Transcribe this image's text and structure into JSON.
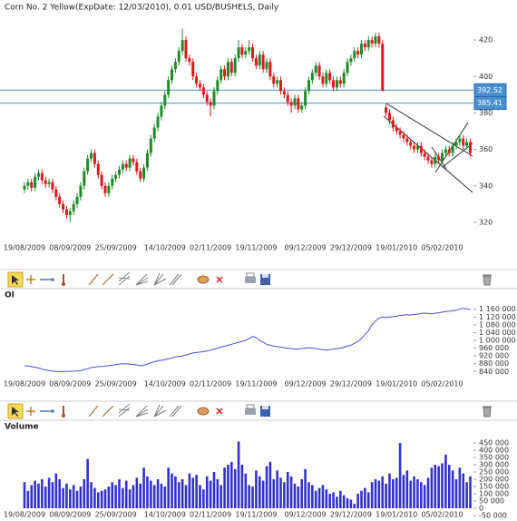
{
  "chart_data": [
    {
      "type": "candlestick",
      "title": "Corn  No. 2 Yellow(ExpDate: 12/03/2010), 0.01 USD/BUSHELS, Daily",
      "categories": [
        "19/08/2009",
        null,
        null,
        null,
        null,
        null,
        null,
        null,
        null,
        null,
        null,
        null,
        null,
        "08/09/2009",
        null,
        null,
        null,
        null,
        null,
        null,
        null,
        null,
        null,
        null,
        null,
        null,
        "25/09/2009",
        null,
        null,
        null,
        null,
        null,
        null,
        null,
        null,
        null,
        null,
        null,
        null,
        null,
        "14/10/2009",
        null,
        null,
        null,
        null,
        null,
        null,
        null,
        null,
        null,
        null,
        null,
        null,
        "02/11/2009",
        null,
        null,
        null,
        null,
        null,
        null,
        null,
        null,
        null,
        null,
        null,
        null,
        "19/11/2009",
        null,
        null,
        null,
        null,
        null,
        null,
        null,
        null,
        null,
        null,
        null,
        null,
        null,
        "09/12/2009",
        null,
        null,
        null,
        null,
        null,
        null,
        null,
        null,
        null,
        null,
        null,
        null,
        "29/12/2009",
        null,
        null,
        null,
        null,
        null,
        null,
        null,
        null,
        null,
        null,
        null,
        null,
        "19/01/2010",
        null,
        null,
        null,
        null,
        null,
        null,
        null,
        null,
        null,
        null,
        null,
        null,
        "05/02/2010",
        null,
        null,
        null,
        null,
        null,
        null,
        null,
        null
      ],
      "open": [
        338,
        340,
        342,
        339,
        345,
        347,
        343,
        341,
        342,
        338,
        334,
        330,
        327,
        324,
        326,
        330,
        334,
        340,
        348,
        355,
        358,
        352,
        346,
        340,
        336,
        340,
        344,
        346,
        349,
        352,
        350,
        355,
        353,
        348,
        344,
        350,
        358,
        366,
        372,
        378,
        384,
        390,
        398,
        404,
        408,
        414,
        420,
        410,
        408,
        400,
        396,
        394,
        390,
        386,
        384,
        392,
        398,
        404,
        400,
        408,
        402,
        410,
        416,
        412,
        414,
        416,
        410,
        406,
        412,
        404,
        408,
        400,
        396,
        398,
        392,
        390,
        386,
        384,
        388,
        382,
        384,
        392,
        398,
        402,
        406,
        400,
        396,
        402,
        398,
        394,
        398,
        396,
        402,
        408,
        410,
        414,
        412,
        418,
        416,
        420,
        418,
        422,
        418,
        383,
        380,
        376,
        372,
        370,
        368,
        366,
        364,
        362,
        360,
        362,
        358,
        356,
        354,
        352,
        356,
        354,
        358,
        360,
        358,
        362,
        364,
        366,
        362,
        364
      ],
      "high": [
        342,
        344,
        344,
        347,
        349,
        349,
        345,
        344,
        344,
        340,
        336,
        332,
        329,
        328,
        332,
        336,
        342,
        350,
        357,
        360,
        360,
        354,
        348,
        342,
        342,
        346,
        348,
        351,
        354,
        354,
        357,
        357,
        355,
        350,
        352,
        360,
        368,
        374,
        380,
        386,
        392,
        400,
        406,
        410,
        416,
        426,
        422,
        412,
        410,
        402,
        398,
        396,
        392,
        388,
        394,
        400,
        406,
        406,
        410,
        410,
        412,
        420,
        418,
        416,
        420,
        418,
        412,
        414,
        414,
        410,
        410,
        402,
        400,
        400,
        394,
        392,
        388,
        390,
        390,
        386,
        394,
        400,
        404,
        408,
        408,
        402,
        404,
        404,
        400,
        400,
        400,
        404,
        410,
        412,
        416,
        416,
        420,
        420,
        422,
        422,
        424,
        424,
        420,
        385,
        382,
        378,
        374,
        372,
        370,
        368,
        366,
        364,
        364,
        364,
        360,
        358,
        356,
        358,
        358,
        360,
        362,
        362,
        364,
        366,
        368,
        368,
        366,
        366
      ],
      "low": [
        336,
        338,
        337,
        337,
        343,
        341,
        339,
        339,
        336,
        332,
        328,
        325,
        322,
        320,
        324,
        328,
        332,
        338,
        346,
        353,
        350,
        344,
        338,
        334,
        334,
        338,
        342,
        344,
        347,
        348,
        348,
        351,
        346,
        342,
        342,
        348,
        356,
        364,
        370,
        376,
        382,
        388,
        396,
        402,
        406,
        412,
        408,
        406,
        398,
        394,
        392,
        388,
        384,
        378,
        382,
        390,
        396,
        398,
        398,
        400,
        400,
        408,
        410,
        410,
        412,
        408,
        404,
        404,
        402,
        402,
        398,
        394,
        394,
        390,
        388,
        384,
        380,
        382,
        380,
        380,
        382,
        390,
        396,
        400,
        398,
        394,
        394,
        396,
        392,
        392,
        394,
        394,
        400,
        406,
        408,
        410,
        410,
        414,
        414,
        416,
        416,
        416,
        392,
        378,
        374,
        370,
        368,
        366,
        364,
        362,
        360,
        358,
        358,
        356,
        354,
        352,
        350,
        350,
        352,
        352,
        356,
        356,
        356,
        360,
        362,
        360,
        360,
        356
      ],
      "close": [
        340,
        342,
        339,
        345,
        347,
        343,
        341,
        342,
        338,
        334,
        330,
        327,
        324,
        326,
        330,
        334,
        340,
        348,
        355,
        358,
        352,
        346,
        340,
        336,
        340,
        344,
        346,
        349,
        352,
        350,
        355,
        353,
        348,
        344,
        350,
        358,
        366,
        372,
        378,
        384,
        390,
        398,
        404,
        408,
        414,
        420,
        410,
        408,
        400,
        396,
        394,
        390,
        386,
        384,
        392,
        398,
        404,
        400,
        408,
        402,
        410,
        416,
        412,
        414,
        416,
        410,
        406,
        412,
        404,
        408,
        400,
        396,
        398,
        392,
        390,
        386,
        384,
        388,
        382,
        384,
        392,
        398,
        402,
        406,
        400,
        396,
        402,
        398,
        394,
        398,
        396,
        402,
        408,
        410,
        414,
        412,
        418,
        416,
        420,
        418,
        422,
        418,
        392,
        380,
        376,
        372,
        370,
        368,
        366,
        364,
        362,
        360,
        362,
        358,
        356,
        354,
        352,
        356,
        354,
        358,
        360,
        358,
        362,
        364,
        366,
        362,
        364,
        358
      ],
      "up_color": "#1f8a2a",
      "down_color": "#d81c1c",
      "ylim": [
        310,
        433
      ],
      "yticks": [
        320,
        340,
        360,
        380,
        400,
        420
      ],
      "hlines": [
        392.52,
        385.41
      ],
      "hline_color": "#4a90d0"
    },
    {
      "type": "line",
      "title": "OI",
      "categories": [
        "19/08/2009",
        null,
        null,
        null,
        null,
        null,
        null,
        null,
        null,
        null,
        null,
        null,
        null,
        "08/09/2009",
        null,
        null,
        null,
        null,
        null,
        null,
        null,
        null,
        null,
        null,
        null,
        null,
        "25/09/2009",
        null,
        null,
        null,
        null,
        null,
        null,
        null,
        null,
        null,
        null,
        null,
        null,
        null,
        "14/10/2009",
        null,
        null,
        null,
        null,
        null,
        null,
        null,
        null,
        null,
        null,
        null,
        null,
        "02/11/2009",
        null,
        null,
        null,
        null,
        null,
        null,
        null,
        null,
        null,
        null,
        null,
        null,
        "19/11/2009",
        null,
        null,
        null,
        null,
        null,
        null,
        null,
        null,
        null,
        null,
        null,
        null,
        null,
        "09/12/2009",
        null,
        null,
        null,
        null,
        null,
        null,
        null,
        null,
        null,
        null,
        null,
        null,
        "29/12/2009",
        null,
        null,
        null,
        null,
        null,
        null,
        null,
        null,
        null,
        null,
        null,
        null,
        "19/01/2010",
        null,
        null,
        null,
        null,
        null,
        null,
        null,
        null,
        null,
        null,
        null,
        null,
        "05/02/2010",
        null,
        null,
        null,
        null,
        null,
        null,
        null,
        null
      ],
      "values": [
        870000,
        868000,
        865000,
        862000,
        858000,
        852000,
        848000,
        845000,
        842000,
        840000,
        840000,
        839000,
        840000,
        841000,
        842000,
        843000,
        845000,
        850000,
        855000,
        860000,
        862000,
        865000,
        866000,
        868000,
        870000,
        872000,
        875000,
        878000,
        880000,
        879000,
        878000,
        876000,
        874000,
        870000,
        872000,
        878000,
        885000,
        890000,
        895000,
        898000,
        900000,
        905000,
        910000,
        915000,
        918000,
        920000,
        925000,
        930000,
        935000,
        938000,
        940000,
        942000,
        945000,
        950000,
        955000,
        960000,
        965000,
        970000,
        975000,
        980000,
        985000,
        990000,
        995000,
        1000000,
        1010000,
        1020000,
        1015000,
        1000000,
        990000,
        980000,
        975000,
        970000,
        968000,
        965000,
        962000,
        960000,
        958000,
        955000,
        955000,
        958000,
        960000,
        962000,
        960000,
        958000,
        955000,
        952000,
        950000,
        952000,
        955000,
        958000,
        960000,
        965000,
        970000,
        975000,
        985000,
        995000,
        1010000,
        1030000,
        1050000,
        1080000,
        1100000,
        1115000,
        1120000,
        1118000,
        1120000,
        1122000,
        1125000,
        1128000,
        1130000,
        1132000,
        1130000,
        1133000,
        1135000,
        1138000,
        1140000,
        1138000,
        1136000,
        1140000,
        1142000,
        1145000,
        1148000,
        1150000,
        1152000,
        1155000,
        1160000,
        1165000,
        1162000,
        1158000
      ],
      "color": "#4c4ccf",
      "ylim": [
        790000,
        1210000
      ],
      "yticks": [
        {
          "value": 840000,
          "label": "840 000"
        },
        {
          "value": 880000,
          "label": "880 000"
        },
        {
          "value": 920000,
          "label": "920 000"
        },
        {
          "value": 960000,
          "label": "960 000"
        },
        {
          "value": 1000000,
          "label": "1 000 000"
        },
        {
          "value": 1040000,
          "label": "1 040 000"
        },
        {
          "value": 1080000,
          "label": "1 080 000"
        },
        {
          "value": 1120000,
          "label": "1 120 000"
        },
        {
          "value": 1160000,
          "label": "1 160 000"
        }
      ]
    },
    {
      "type": "bar",
      "title": "Volume",
      "categories": [
        "19/08/2009",
        null,
        null,
        null,
        null,
        null,
        null,
        null,
        null,
        null,
        null,
        null,
        null,
        "08/09/2009",
        null,
        null,
        null,
        null,
        null,
        null,
        null,
        null,
        null,
        null,
        null,
        null,
        "25/09/2009",
        null,
        null,
        null,
        null,
        null,
        null,
        null,
        null,
        null,
        null,
        null,
        null,
        null,
        "14/10/2009",
        null,
        null,
        null,
        null,
        null,
        null,
        null,
        null,
        null,
        null,
        null,
        null,
        "02/11/2009",
        null,
        null,
        null,
        null,
        null,
        null,
        null,
        null,
        null,
        null,
        null,
        null,
        "19/11/2009",
        null,
        null,
        null,
        null,
        null,
        null,
        null,
        null,
        null,
        null,
        null,
        null,
        null,
        "09/12/2009",
        null,
        null,
        null,
        null,
        null,
        null,
        null,
        null,
        null,
        null,
        null,
        null,
        "29/12/2009",
        null,
        null,
        null,
        null,
        null,
        null,
        null,
        null,
        null,
        null,
        null,
        null,
        "19/01/2010",
        null,
        null,
        null,
        null,
        null,
        null,
        null,
        null,
        null,
        null,
        null,
        null,
        "05/02/2010",
        null,
        null,
        null,
        null,
        null,
        null,
        null,
        null
      ],
      "values": [
        180000,
        120000,
        160000,
        190000,
        170000,
        200000,
        150000,
        210000,
        180000,
        240000,
        200000,
        140000,
        170000,
        130000,
        160000,
        120000,
        150000,
        200000,
        340000,
        180000,
        140000,
        110000,
        120000,
        130000,
        150000,
        180000,
        160000,
        200000,
        140000,
        190000,
        130000,
        160000,
        210000,
        170000,
        280000,
        220000,
        190000,
        160000,
        200000,
        170000,
        150000,
        280000,
        240000,
        220000,
        180000,
        200000,
        160000,
        240000,
        210000,
        230000,
        160000,
        130000,
        220000,
        190000,
        250000,
        200000,
        160000,
        280000,
        300000,
        320000,
        270000,
        460000,
        300000,
        240000,
        160000,
        150000,
        260000,
        220000,
        190000,
        290000,
        320000,
        200000,
        260000,
        210000,
        180000,
        250000,
        220000,
        170000,
        150000,
        200000,
        270000,
        180000,
        160000,
        120000,
        140000,
        160000,
        130000,
        100000,
        110000,
        80000,
        120000,
        90000,
        70000,
        60000,
        30000,
        100000,
        120000,
        140000,
        110000,
        180000,
        200000,
        190000,
        220000,
        170000,
        240000,
        200000,
        210000,
        450000,
        230000,
        260000,
        190000,
        220000,
        200000,
        180000,
        160000,
        210000,
        280000,
        300000,
        290000,
        310000,
        370000,
        300000,
        260000,
        200000,
        280000,
        240000,
        180000,
        220000
      ],
      "color": "#3232c8",
      "ylim": [
        -75000,
        512500
      ],
      "yticks": [
        {
          "value": -50000,
          "label": "-50 000"
        },
        0,
        {
          "value": 50000,
          "label": "50 000"
        },
        {
          "value": 100000,
          "label": "100 000"
        },
        {
          "value": 150000,
          "label": "150 000"
        },
        {
          "value": 200000,
          "label": "200 000"
        },
        {
          "value": 250000,
          "label": "250 000"
        },
        {
          "value": 300000,
          "label": "300 000"
        },
        {
          "value": 350000,
          "label": "350 000"
        },
        {
          "value": 400000,
          "label": "400 000"
        },
        {
          "value": 450000,
          "label": "450 000"
        }
      ]
    }
  ]
}
